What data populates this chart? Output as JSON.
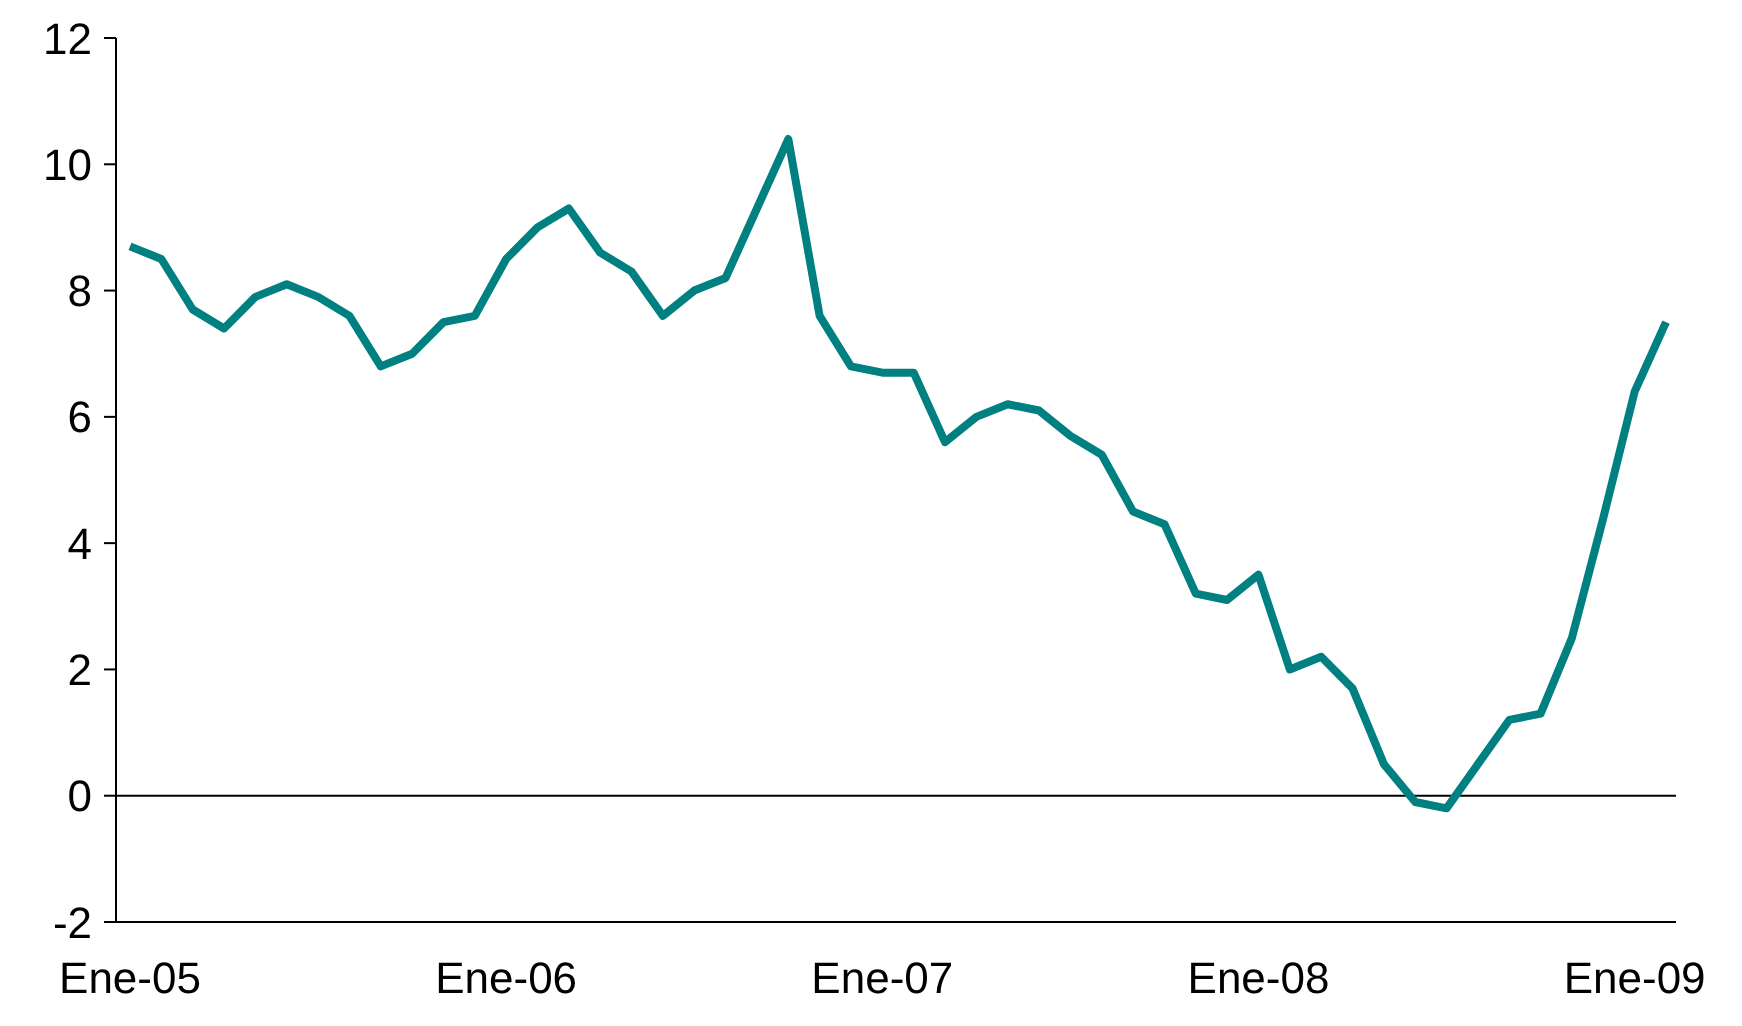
{
  "chart_data": {
    "type": "line",
    "categories": [
      "Ene-05",
      null,
      null,
      null,
      null,
      null,
      null,
      null,
      null,
      null,
      null,
      null,
      "Ene-06",
      null,
      null,
      null,
      null,
      null,
      null,
      null,
      null,
      null,
      null,
      null,
      "Ene-07",
      null,
      null,
      null,
      null,
      null,
      null,
      null,
      null,
      null,
      null,
      null,
      "Ene-08",
      null,
      null,
      null,
      null,
      null,
      null,
      null,
      null,
      null,
      null,
      null,
      "Ene-09",
      null
    ],
    "series": [
      {
        "color": "#008080",
        "values": [
          8.7,
          8.5,
          7.7,
          7.4,
          7.9,
          8.1,
          7.9,
          7.6,
          6.8,
          7.0,
          7.5,
          7.6,
          8.5,
          9.0,
          9.3,
          8.6,
          8.3,
          7.6,
          8.0,
          8.2,
          9.3,
          10.4,
          7.6,
          6.8,
          6.7,
          6.7,
          5.6,
          6.0,
          6.2,
          6.1,
          5.7,
          5.4,
          4.5,
          4.3,
          3.2,
          3.1,
          3.5,
          2.0,
          2.2,
          1.7,
          0.5,
          -0.1,
          -0.2,
          0.5,
          1.2,
          1.3,
          2.5,
          4.4,
          6.4,
          7.5
        ]
      }
    ],
    "ylim": [
      -2,
      12
    ],
    "yticks": [
      -2,
      0,
      2,
      4,
      6,
      8,
      10,
      12
    ],
    "grid": false,
    "legend": false,
    "marker": "none",
    "line_style": "solid",
    "ref_lines": [
      {
        "axis": "y",
        "value": 0,
        "color": "#000000"
      }
    ]
  }
}
